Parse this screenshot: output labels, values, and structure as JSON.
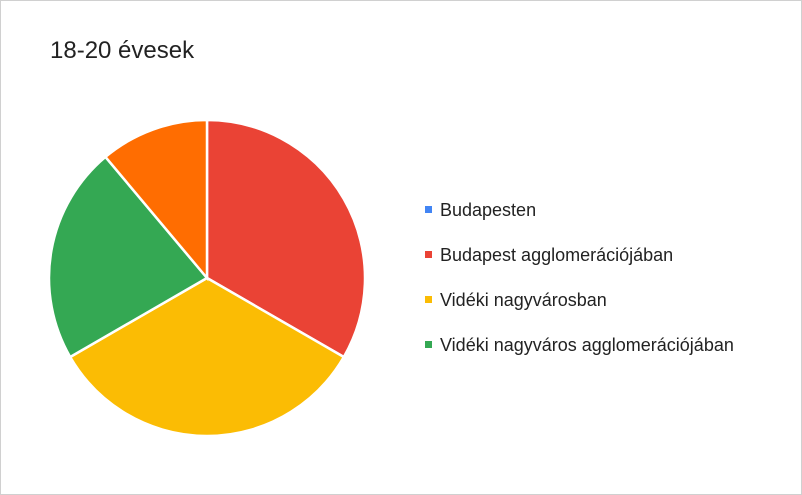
{
  "chart_data": {
    "type": "pie",
    "title": "18-20 évesek",
    "categories": [
      "Budapesten",
      "Budapest agglomerációjában",
      "Vidéki nagyvárosban",
      "Vidéki nagyváros agglomerációjában",
      null
    ],
    "values": [
      0,
      3,
      3,
      2,
      1
    ],
    "colors": [
      "#4285f4",
      "#ea4335",
      "#fbbc04",
      "#34a853",
      "#ff6d01"
    ],
    "legend": "right"
  }
}
